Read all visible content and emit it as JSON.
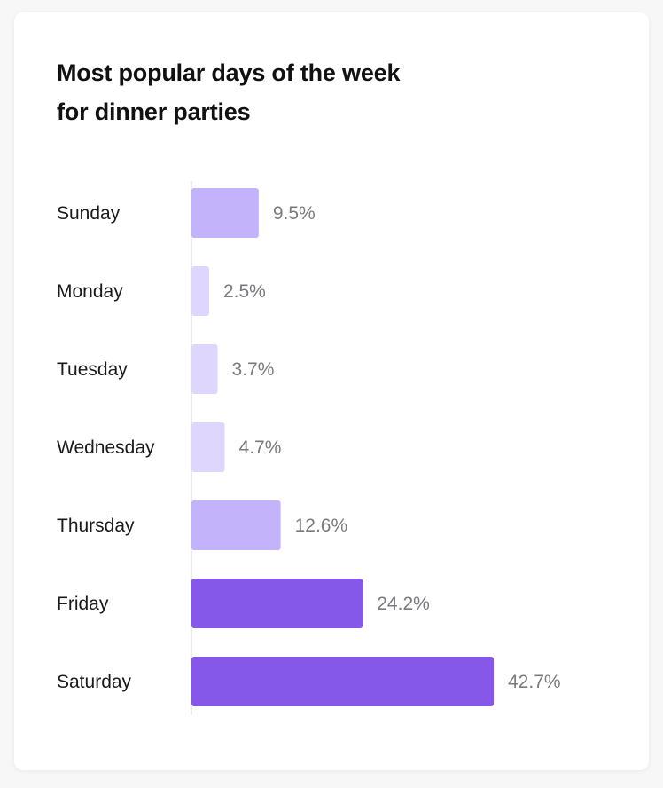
{
  "chart_data": {
    "type": "bar",
    "orientation": "horizontal",
    "title": "Most popular days of the week for dinner parties",
    "categories": [
      "Sunday",
      "Monday",
      "Tuesday",
      "Wednesday",
      "Thursday",
      "Friday",
      "Saturday"
    ],
    "values": [
      9.5,
      2.5,
      3.7,
      4.7,
      12.6,
      24.2,
      42.7
    ],
    "value_labels": [
      "9.5%",
      "2.5%",
      "3.7%",
      "4.7%",
      "12.6%",
      "24.2%",
      "42.7%"
    ],
    "xlabel": "",
    "ylabel": "",
    "xlim": [
      0,
      42.7
    ],
    "grid": false,
    "legend": "none",
    "colors": {
      "low": "#dfd6fd",
      "mid": "#c3b3fb",
      "high": "#8558ea",
      "axis": "#e3e3e6"
    }
  }
}
